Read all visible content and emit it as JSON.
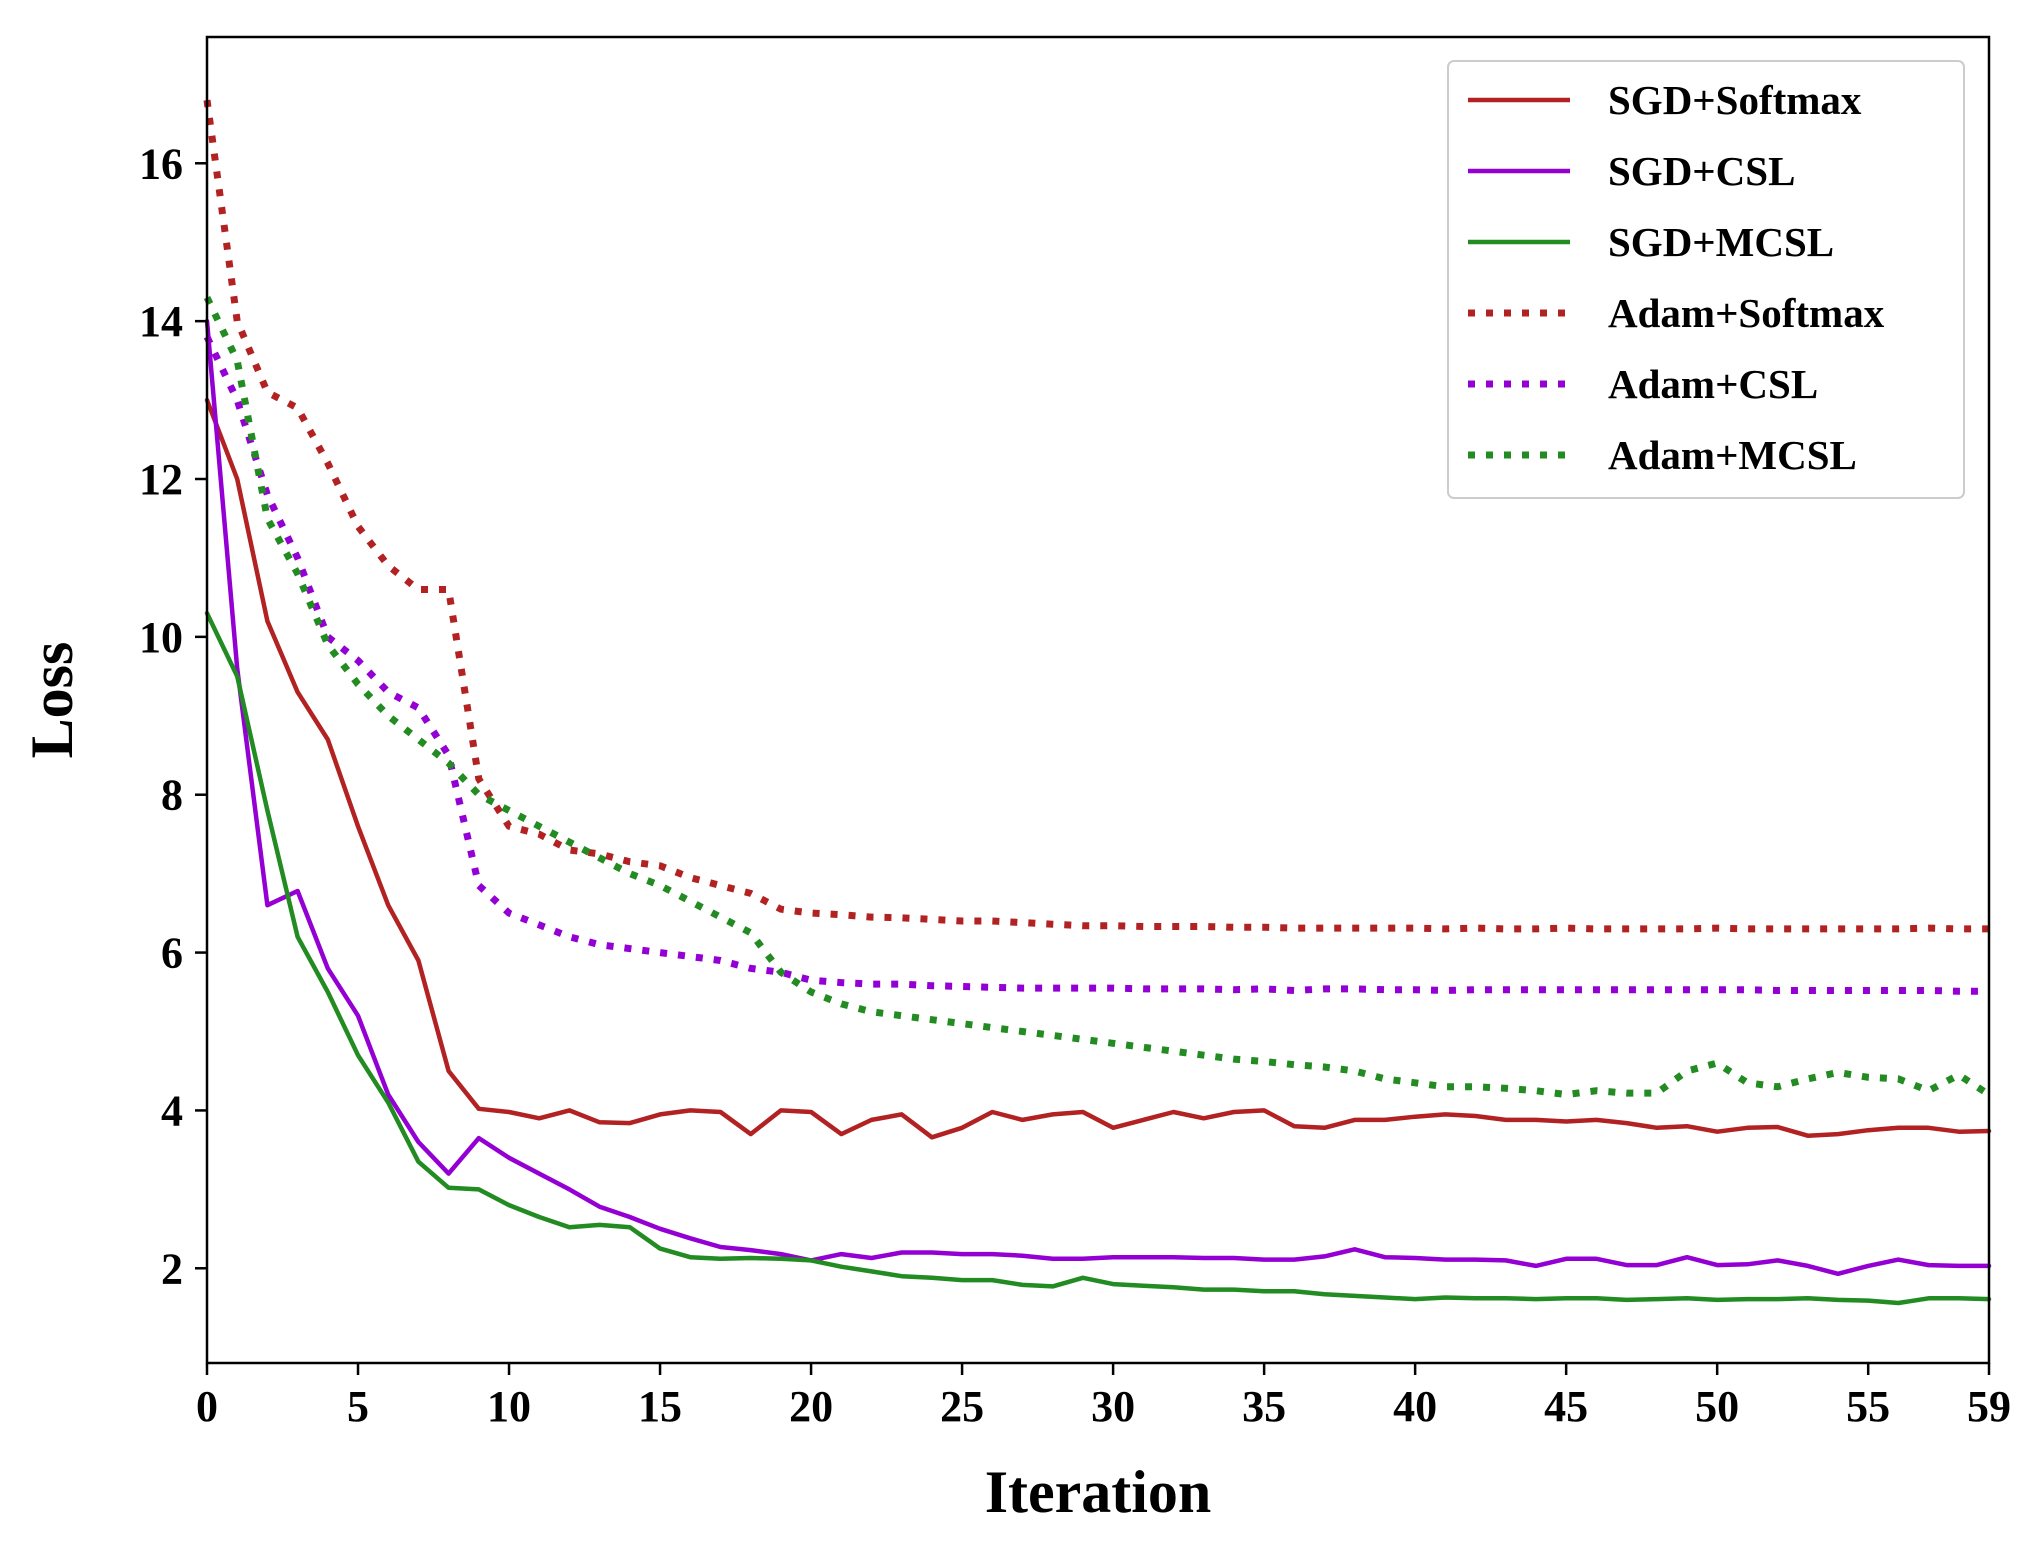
{
  "chart_data": {
    "type": "line",
    "xlabel": "Iteration",
    "ylabel": "Loss",
    "xlim": [
      0,
      59
    ],
    "ylim": [
      0.8,
      17.6
    ],
    "xticks": [
      0,
      5,
      10,
      15,
      20,
      25,
      30,
      35,
      40,
      45,
      50,
      55,
      59
    ],
    "yticks": [
      2,
      4,
      6,
      8,
      10,
      12,
      14,
      16
    ],
    "grid": false,
    "legend_position": "top-right",
    "x": [
      0,
      1,
      2,
      3,
      4,
      5,
      6,
      7,
      8,
      9,
      10,
      11,
      12,
      13,
      14,
      15,
      16,
      17,
      18,
      19,
      20,
      21,
      22,
      23,
      24,
      25,
      26,
      27,
      28,
      29,
      30,
      31,
      32,
      33,
      34,
      35,
      36,
      37,
      38,
      39,
      40,
      41,
      42,
      43,
      44,
      45,
      46,
      47,
      48,
      49,
      50,
      51,
      52,
      53,
      54,
      55,
      56,
      57,
      58,
      59
    ],
    "series": [
      {
        "name": "SGD+Softmax",
        "color": "#b22222",
        "style": "solid",
        "values": [
          13.0,
          12.0,
          10.2,
          9.3,
          8.7,
          7.6,
          6.6,
          5.9,
          4.5,
          4.02,
          3.98,
          3.9,
          4.0,
          3.85,
          3.84,
          3.95,
          4.0,
          3.98,
          3.7,
          4.0,
          3.98,
          3.7,
          3.88,
          3.95,
          3.66,
          3.78,
          3.98,
          3.88,
          3.95,
          3.98,
          3.78,
          3.88,
          3.98,
          3.9,
          3.98,
          4.0,
          3.8,
          3.78,
          3.88,
          3.88,
          3.92,
          3.95,
          3.93,
          3.88,
          3.88,
          3.86,
          3.88,
          3.84,
          3.78,
          3.8,
          3.73,
          3.78,
          3.79,
          3.68,
          3.7,
          3.75,
          3.78,
          3.78,
          3.73,
          3.74
        ]
      },
      {
        "name": "SGD+CSL",
        "color": "#9400d3",
        "style": "solid",
        "values": [
          14.0,
          9.6,
          6.6,
          6.78,
          5.8,
          5.2,
          4.2,
          3.6,
          3.2,
          3.65,
          3.4,
          3.2,
          3.0,
          2.78,
          2.65,
          2.5,
          2.38,
          2.27,
          2.23,
          2.18,
          2.1,
          2.18,
          2.13,
          2.2,
          2.2,
          2.18,
          2.18,
          2.16,
          2.12,
          2.12,
          2.14,
          2.14,
          2.14,
          2.13,
          2.13,
          2.11,
          2.11,
          2.15,
          2.24,
          2.14,
          2.13,
          2.11,
          2.11,
          2.1,
          2.03,
          2.12,
          2.12,
          2.04,
          2.04,
          2.14,
          2.04,
          2.05,
          2.1,
          2.03,
          1.93,
          2.03,
          2.11,
          2.04,
          2.03,
          2.03
        ]
      },
      {
        "name": "SGD+MCSL",
        "color": "#228b22",
        "style": "solid",
        "values": [
          10.3,
          9.5,
          7.8,
          6.2,
          5.5,
          4.7,
          4.1,
          3.35,
          3.02,
          3.0,
          2.8,
          2.65,
          2.52,
          2.55,
          2.52,
          2.25,
          2.14,
          2.12,
          2.13,
          2.12,
          2.1,
          2.02,
          1.96,
          1.9,
          1.88,
          1.85,
          1.85,
          1.79,
          1.77,
          1.88,
          1.8,
          1.78,
          1.76,
          1.73,
          1.73,
          1.71,
          1.71,
          1.67,
          1.65,
          1.63,
          1.61,
          1.63,
          1.62,
          1.62,
          1.61,
          1.62,
          1.62,
          1.6,
          1.61,
          1.62,
          1.6,
          1.61,
          1.61,
          1.62,
          1.6,
          1.59,
          1.56,
          1.62,
          1.62,
          1.61
        ]
      },
      {
        "name": "Adam+Softmax",
        "color": "#b22222",
        "style": "dotted",
        "values": [
          16.8,
          14.0,
          13.1,
          12.9,
          12.2,
          11.4,
          10.9,
          10.6,
          10.6,
          8.2,
          7.6,
          7.5,
          7.3,
          7.25,
          7.15,
          7.1,
          6.95,
          6.85,
          6.75,
          6.55,
          6.5,
          6.48,
          6.45,
          6.44,
          6.42,
          6.4,
          6.4,
          6.38,
          6.36,
          6.34,
          6.34,
          6.33,
          6.33,
          6.33,
          6.32,
          6.32,
          6.31,
          6.31,
          6.31,
          6.31,
          6.31,
          6.3,
          6.31,
          6.3,
          6.3,
          6.31,
          6.3,
          6.3,
          6.3,
          6.3,
          6.31,
          6.3,
          6.3,
          6.3,
          6.3,
          6.3,
          6.3,
          6.31,
          6.3,
          6.3
        ]
      },
      {
        "name": "Adam+CSL",
        "color": "#9400d3",
        "style": "dotted",
        "values": [
          13.8,
          13.0,
          11.8,
          11.0,
          10.0,
          9.7,
          9.3,
          9.1,
          8.5,
          6.85,
          6.5,
          6.35,
          6.2,
          6.1,
          6.05,
          6.0,
          5.95,
          5.9,
          5.8,
          5.75,
          5.65,
          5.62,
          5.6,
          5.6,
          5.58,
          5.57,
          5.56,
          5.55,
          5.55,
          5.55,
          5.55,
          5.54,
          5.54,
          5.54,
          5.53,
          5.54,
          5.52,
          5.54,
          5.54,
          5.53,
          5.53,
          5.52,
          5.53,
          5.53,
          5.53,
          5.53,
          5.53,
          5.53,
          5.53,
          5.53,
          5.53,
          5.53,
          5.52,
          5.52,
          5.52,
          5.52,
          5.52,
          5.52,
          5.51,
          5.51
        ]
      },
      {
        "name": "Adam+MCSL",
        "color": "#228b22",
        "style": "dotted",
        "values": [
          14.3,
          13.5,
          11.5,
          10.8,
          9.9,
          9.4,
          9.0,
          8.7,
          8.4,
          8.0,
          7.8,
          7.6,
          7.4,
          7.2,
          7.0,
          6.85,
          6.65,
          6.45,
          6.25,
          5.75,
          5.5,
          5.35,
          5.25,
          5.2,
          5.15,
          5.1,
          5.05,
          5.0,
          4.95,
          4.9,
          4.85,
          4.8,
          4.75,
          4.7,
          4.65,
          4.62,
          4.58,
          4.55,
          4.5,
          4.4,
          4.35,
          4.3,
          4.3,
          4.28,
          4.25,
          4.2,
          4.25,
          4.22,
          4.22,
          4.5,
          4.6,
          4.35,
          4.3,
          4.4,
          4.48,
          4.42,
          4.4,
          4.25,
          4.45,
          4.2
        ]
      }
    ]
  }
}
